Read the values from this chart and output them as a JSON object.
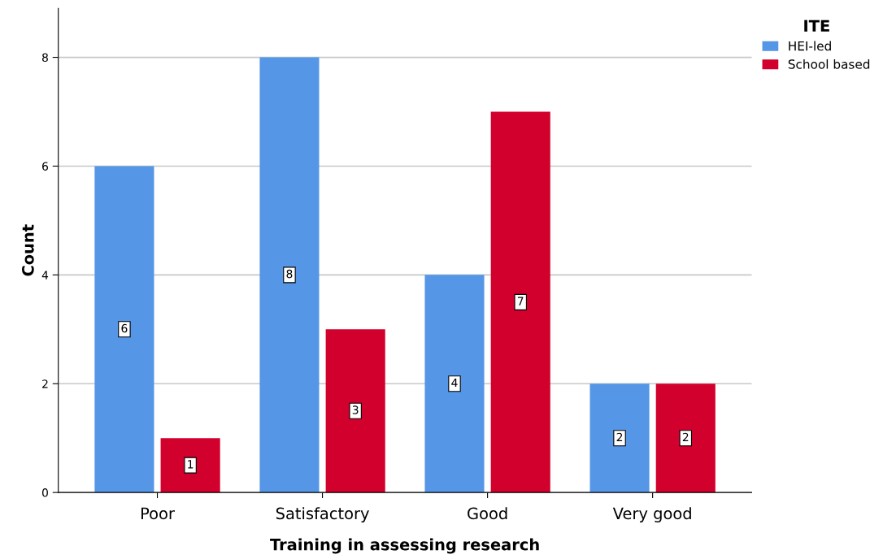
{
  "chart_data": {
    "type": "bar",
    "xlabel": "Training in assessing research",
    "ylabel": "Count",
    "legend_title": "ITE",
    "categories": [
      "Poor",
      "Satisfactory",
      "Good",
      "Very good"
    ],
    "series": [
      {
        "name": "HEI-led",
        "color": "#5596e6",
        "values": [
          6,
          8,
          4,
          2
        ]
      },
      {
        "name": "School based",
        "color": "#d2002c",
        "values": [
          1,
          3,
          7,
          2
        ]
      }
    ],
    "ylim": [
      0,
      8.9
    ],
    "yticks": [
      0,
      2,
      4,
      6,
      8
    ],
    "grid": "y",
    "legend": "top right",
    "data_labels": true
  }
}
